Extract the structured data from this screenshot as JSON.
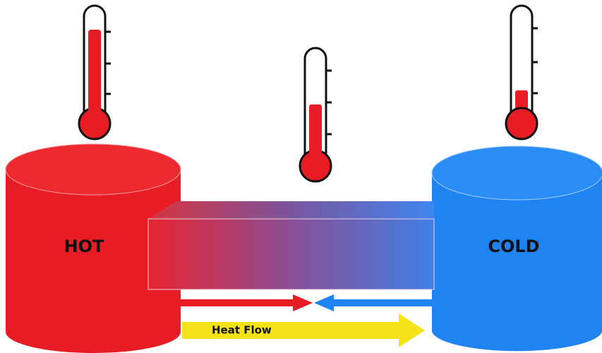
{
  "nodes": [
    {
      "label": "HOT"
    },
    {
      "label": "COLD"
    }
  ],
  "arrow": {
    "label": "Heat Flow"
  }
}
